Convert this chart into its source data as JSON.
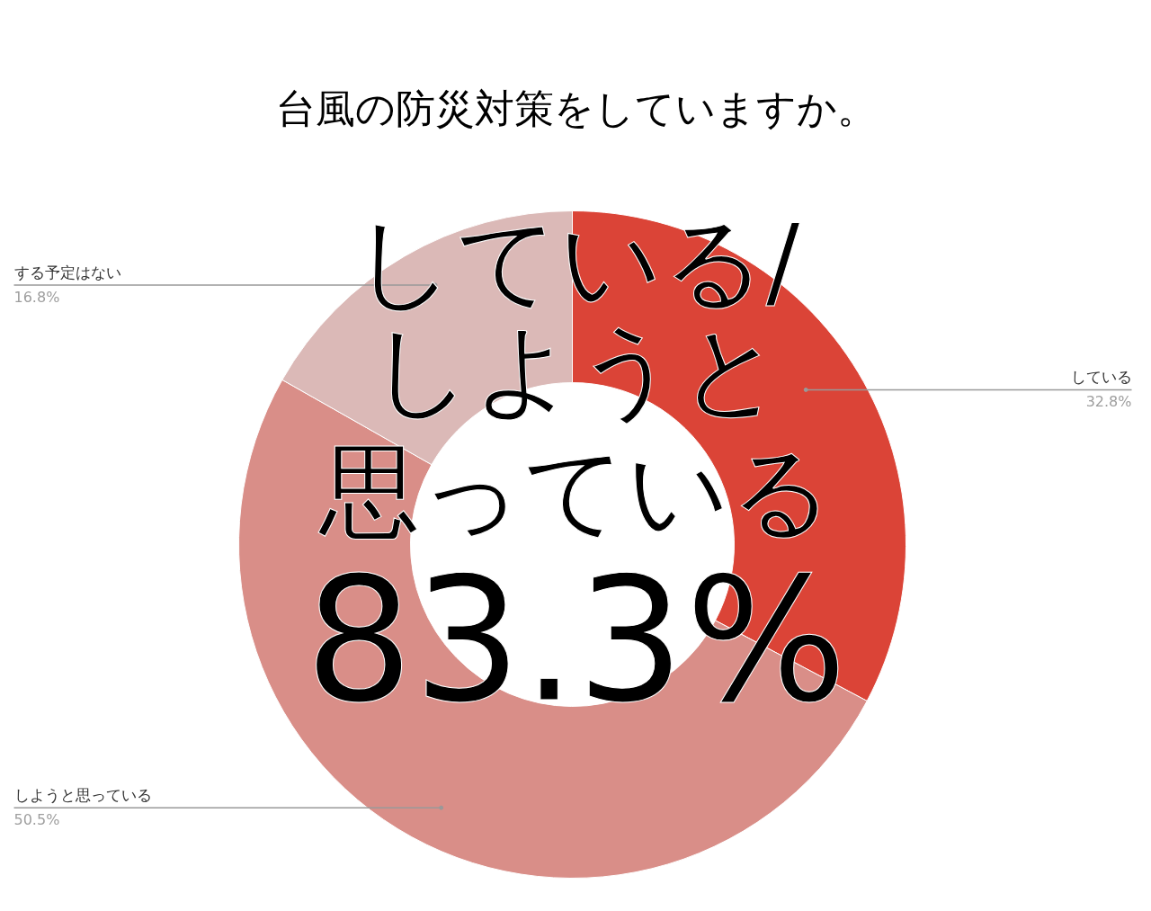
{
  "chart_data": {
    "type": "donut",
    "title": "台風の防災対策をしていますか。",
    "categories": [
      "している",
      "しようと思っている",
      "する予定はない"
    ],
    "values": [
      32.8,
      50.5,
      16.8
    ],
    "colors": [
      "#db4437",
      "#d98e88",
      "#dbb9b7"
    ],
    "value_labels": [
      "32.8%",
      "50.5%",
      "16.8%"
    ],
    "annotations": [
      "している/",
      "しようと",
      "思っている",
      "83.3%"
    ]
  }
}
